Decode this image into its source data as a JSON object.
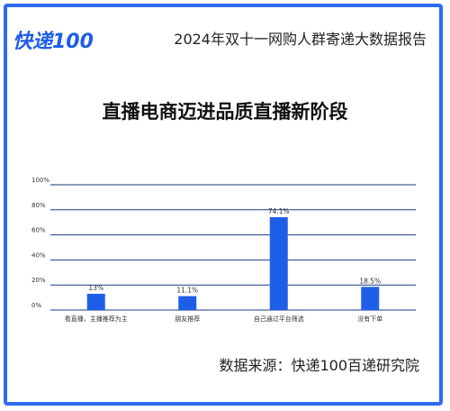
{
  "header": {
    "logo_text": "快递100",
    "report_title": "2024年双十一网购人群寄递大数据报告"
  },
  "headline": "直播电商迈进品质直播新阶段",
  "footer": {
    "source": "数据来源：快递100百递研究院"
  },
  "colors": {
    "accent": "#2f6bf0",
    "bar": "#1f5fe8",
    "grid": "#1c3a86"
  },
  "chart_data": {
    "type": "bar",
    "categories": [
      "看直播，主播推荐为主",
      "朋友推荐",
      "自己通过平台筛选",
      "没有下单"
    ],
    "values": [
      13,
      11.1,
      74.1,
      18.5
    ],
    "value_labels": [
      "13%",
      "11.1%",
      "74.1%",
      "18.5%"
    ],
    "y_ticks": [
      0,
      20,
      40,
      60,
      80,
      100
    ],
    "y_tick_labels": [
      "0%",
      "20%",
      "40%",
      "60%",
      "80%",
      "100%"
    ],
    "ylim": [
      0,
      100
    ],
    "grid": true
  }
}
